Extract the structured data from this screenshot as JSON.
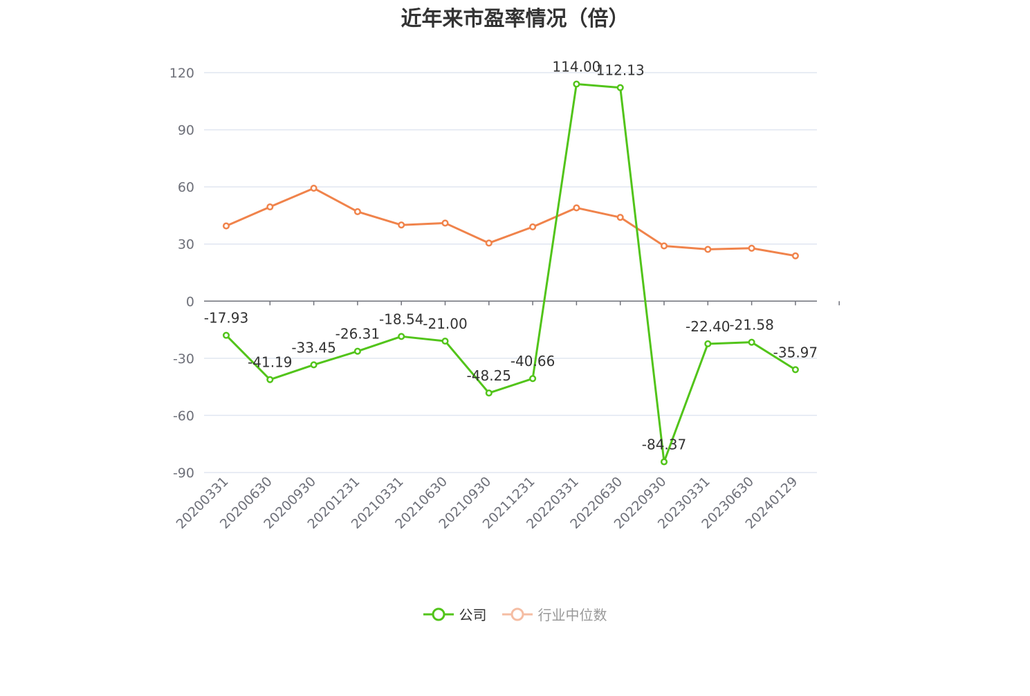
{
  "chart_data": {
    "type": "line",
    "title": "近年来市盈率情况（倍）",
    "categories": [
      "20200331",
      "20200630",
      "20200930",
      "20201231",
      "20210331",
      "20210630",
      "20210930",
      "20211231",
      "20220331",
      "20220630",
      "20220930",
      "20230331",
      "20230630",
      "20240129"
    ],
    "series": [
      {
        "name": "公司",
        "color": "#52c41a",
        "values": [
          -17.93,
          -41.19,
          -33.45,
          -26.31,
          -18.54,
          -21.0,
          -48.25,
          -40.66,
          114.0,
          112.13,
          -84.37,
          -22.4,
          -21.58,
          -35.97
        ],
        "labels": [
          "-17.93",
          "-41.19",
          "-33.45",
          "-26.31",
          "-18.54",
          "-21.00",
          "-48.25",
          "-40.66",
          "114.00",
          "112.13",
          "-84.37",
          "-22.40",
          "-21.58",
          "-35.97"
        ]
      },
      {
        "name": "行业中位数",
        "color": "#f0834b",
        "values": [
          39.5,
          49.5,
          59.3,
          47.0,
          40.0,
          41.0,
          30.5,
          39.0,
          49.0,
          44.0,
          29.0,
          27.2,
          27.8,
          23.8
        ]
      }
    ],
    "yticks": [
      120,
      90,
      60,
      30,
      0,
      -30,
      -60,
      -90
    ],
    "ylim": [
      -90,
      120
    ],
    "grid": true,
    "legend_position": "bottom-center"
  },
  "legend_colors": {
    "company": "#52c41a",
    "industry_dim": "#f5bda3"
  }
}
